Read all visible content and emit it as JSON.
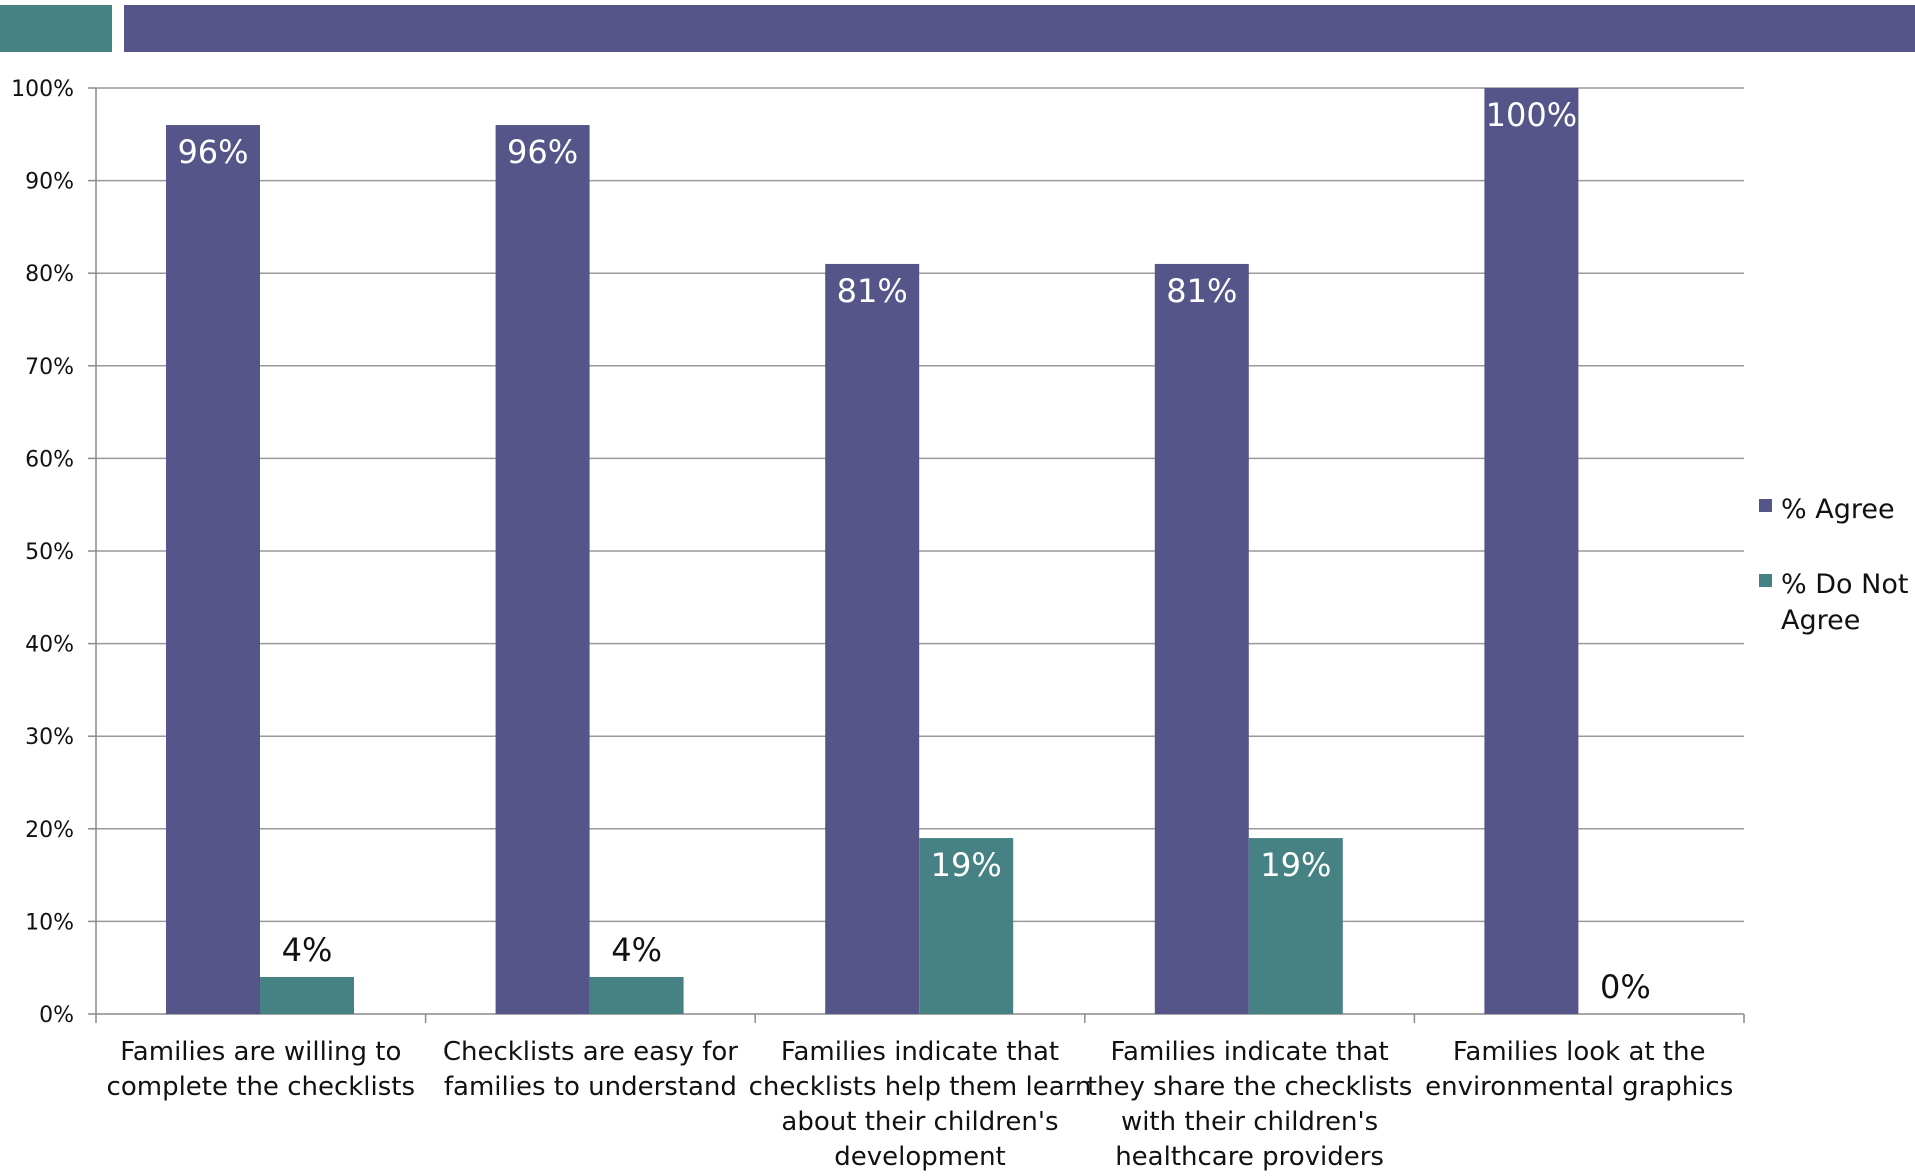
{
  "header": {
    "accent_color": "#468283",
    "bar_color": "#55558A"
  },
  "chart_data": {
    "type": "bar",
    "title": "",
    "xlabel": "",
    "ylabel": "",
    "ylim": [
      0,
      100
    ],
    "yticks": [
      0,
      10,
      20,
      30,
      40,
      50,
      60,
      70,
      80,
      90,
      100
    ],
    "ytick_labels": [
      "0%",
      "10%",
      "20%",
      "30%",
      "40%",
      "50%",
      "60%",
      "70%",
      "80%",
      "90%",
      "100%"
    ],
    "grid": true,
    "legend_position": "right",
    "categories": [
      "Families are willing to complete the checklists",
      "Checklists are easy for families to understand",
      "Families indicate that checklists help them learn about their children's development",
      "Families indicate that they share the checklists with their children's healthcare providers",
      "Families look at the environmental graphics"
    ],
    "category_lines": [
      [
        "Families are willing to",
        "complete the checklists"
      ],
      [
        "Checklists are easy for",
        "families to understand"
      ],
      [
        "Families indicate that",
        "checklists help them learn",
        "about their children's",
        "development"
      ],
      [
        "Families indicate that",
        "they share the checklists",
        "with their children's",
        "healthcare providers"
      ],
      [
        "Families look at the",
        "environmental graphics"
      ]
    ],
    "series": [
      {
        "name": "% Agree",
        "legend_lines": [
          "% Agree"
        ],
        "color": "#55558A",
        "values": [
          96,
          96,
          81,
          81,
          100
        ],
        "labels": [
          "96%",
          "96%",
          "81%",
          "81%",
          "100%"
        ]
      },
      {
        "name": "% Do Not Agree",
        "legend_lines": [
          "% Do Not",
          "Agree"
        ],
        "color": "#468283",
        "values": [
          4,
          4,
          19,
          19,
          0
        ],
        "labels": [
          "4%",
          "4%",
          "19%",
          "19%",
          "0%"
        ]
      }
    ]
  }
}
